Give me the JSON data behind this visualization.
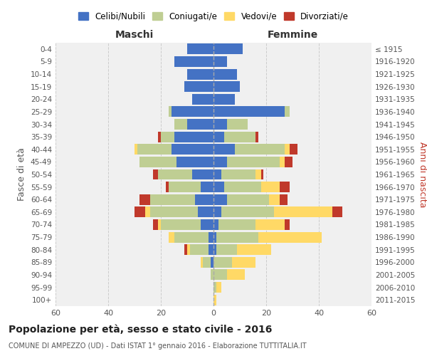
{
  "age_groups": [
    "0-4",
    "5-9",
    "10-14",
    "15-19",
    "20-24",
    "25-29",
    "30-34",
    "35-39",
    "40-44",
    "45-49",
    "50-54",
    "55-59",
    "60-64",
    "65-69",
    "70-74",
    "75-79",
    "80-84",
    "85-89",
    "90-94",
    "95-99",
    "100+"
  ],
  "birth_years": [
    "2011-2015",
    "2006-2010",
    "2001-2005",
    "1996-2000",
    "1991-1995",
    "1986-1990",
    "1981-1985",
    "1976-1980",
    "1971-1975",
    "1966-1970",
    "1961-1965",
    "1956-1960",
    "1951-1955",
    "1946-1950",
    "1941-1945",
    "1936-1940",
    "1931-1935",
    "1926-1930",
    "1921-1925",
    "1916-1920",
    "≤ 1915"
  ],
  "maschi": {
    "celibi": [
      10,
      15,
      10,
      11,
      8,
      16,
      10,
      15,
      16,
      14,
      8,
      5,
      7,
      6,
      5,
      2,
      2,
      1,
      0,
      0,
      0
    ],
    "coniugati": [
      0,
      0,
      0,
      0,
      0,
      1,
      5,
      5,
      13,
      14,
      13,
      12,
      17,
      18,
      15,
      13,
      7,
      3,
      1,
      0,
      0
    ],
    "vedovi": [
      0,
      0,
      0,
      0,
      0,
      0,
      0,
      0,
      1,
      0,
      0,
      0,
      0,
      2,
      1,
      2,
      1,
      1,
      0,
      0,
      0
    ],
    "divorziati": [
      0,
      0,
      0,
      0,
      0,
      0,
      0,
      1,
      0,
      0,
      2,
      1,
      4,
      4,
      2,
      0,
      1,
      0,
      0,
      0,
      0
    ]
  },
  "femmine": {
    "nubili": [
      11,
      5,
      9,
      10,
      8,
      27,
      5,
      4,
      8,
      5,
      3,
      4,
      5,
      3,
      2,
      1,
      1,
      0,
      0,
      0,
      0
    ],
    "coniugate": [
      0,
      0,
      0,
      0,
      0,
      2,
      8,
      12,
      19,
      20,
      13,
      14,
      16,
      20,
      14,
      16,
      8,
      7,
      5,
      1,
      0
    ],
    "vedove": [
      0,
      0,
      0,
      0,
      0,
      0,
      0,
      0,
      2,
      2,
      2,
      7,
      4,
      22,
      11,
      24,
      13,
      9,
      7,
      2,
      1
    ],
    "divorziate": [
      0,
      0,
      0,
      0,
      0,
      0,
      0,
      1,
      3,
      3,
      1,
      4,
      3,
      4,
      2,
      0,
      0,
      0,
      0,
      0,
      0
    ]
  },
  "colors": {
    "celibi_nubili": "#4472C4",
    "coniugati": "#BFCE93",
    "vedovi": "#FFD966",
    "divorziati": "#C0392B"
  },
  "xlim": 60,
  "title": "Popolazione per età, sesso e stato civile - 2016",
  "subtitle": "COMUNE DI AMPEZZO (UD) - Dati ISTAT 1° gennaio 2016 - Elaborazione TUTTITALIA.IT",
  "ylabel_left": "Fasce di età",
  "ylabel_right": "Anni di nascita",
  "xlabel_left": "Maschi",
  "xlabel_right": "Femmine"
}
